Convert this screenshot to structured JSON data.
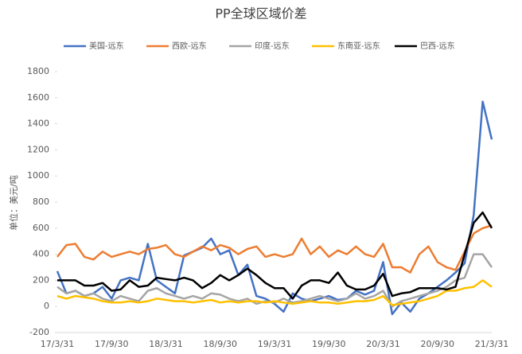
{
  "chart_data": {
    "type": "line",
    "title": "PP全球区域价差",
    "y_label": "单位：美元/吨",
    "x": [
      "17/3/31",
      null,
      null,
      null,
      null,
      null,
      "17/9/30",
      null,
      null,
      null,
      null,
      null,
      "18/3/31",
      null,
      null,
      null,
      null,
      null,
      "18/9/30",
      null,
      null,
      null,
      null,
      null,
      "19/3/31",
      null,
      null,
      null,
      null,
      null,
      "19/9/30",
      null,
      null,
      null,
      null,
      null,
      "20/3/31",
      null,
      null,
      null,
      null,
      null,
      "20/9/30",
      null,
      null,
      null,
      null,
      null,
      "21/3/31"
    ],
    "ylim": [
      -200,
      1800
    ],
    "yticks": [
      -200,
      0,
      200,
      400,
      600,
      800,
      1000,
      1200,
      1400,
      1600,
      1800
    ],
    "grid": false,
    "legend": "top",
    "series": [
      {
        "name": "美国-远东",
        "color": "#4472c4",
        "values": [
          270,
          100,
          120,
          80,
          100,
          150,
          60,
          200,
          220,
          200,
          480,
          200,
          150,
          100,
          390,
          420,
          450,
          520,
          400,
          430,
          240,
          320,
          80,
          60,
          20,
          -40,
          100,
          60,
          40,
          60,
          80,
          50,
          60,
          120,
          90,
          120,
          340,
          -60,
          30,
          -40,
          60,
          100,
          150,
          200,
          260,
          330,
          700,
          1570,
          1280
        ]
      },
      {
        "name": "西欧-远东",
        "color": "#ed7d31",
        "values": [
          380,
          470,
          480,
          380,
          360,
          420,
          380,
          400,
          420,
          400,
          440,
          450,
          470,
          400,
          380,
          420,
          460,
          430,
          470,
          450,
          400,
          440,
          460,
          380,
          400,
          380,
          400,
          520,
          400,
          460,
          380,
          430,
          400,
          460,
          400,
          380,
          480,
          300,
          300,
          260,
          400,
          460,
          340,
          300,
          280,
          420,
          560,
          600,
          620
        ]
      },
      {
        "name": "印度-远东",
        "color": "#a5a5a5",
        "values": [
          150,
          100,
          120,
          80,
          100,
          60,
          40,
          80,
          60,
          40,
          120,
          140,
          100,
          80,
          60,
          80,
          60,
          100,
          90,
          60,
          40,
          60,
          20,
          40,
          30,
          60,
          30,
          40,
          60,
          80,
          60,
          40,
          60,
          100,
          60,
          80,
          120,
          0,
          40,
          60,
          80,
          100,
          120,
          150,
          200,
          220,
          400,
          400,
          300
        ]
      },
      {
        "name": "东南亚-远东",
        "color": "#ffc000",
        "values": [
          80,
          60,
          80,
          70,
          60,
          40,
          30,
          30,
          40,
          30,
          40,
          60,
          50,
          40,
          40,
          30,
          40,
          50,
          30,
          40,
          30,
          40,
          40,
          30,
          40,
          30,
          20,
          30,
          40,
          30,
          30,
          20,
          30,
          40,
          40,
          50,
          80,
          10,
          20,
          30,
          40,
          60,
          80,
          120,
          120,
          140,
          150,
          200,
          150
        ]
      },
      {
        "name": "巴西-远东",
        "color": "#000000",
        "values": [
          200,
          200,
          200,
          160,
          160,
          180,
          120,
          130,
          200,
          150,
          160,
          220,
          210,
          200,
          220,
          200,
          140,
          180,
          240,
          200,
          240,
          290,
          240,
          180,
          140,
          140,
          60,
          160,
          200,
          200,
          180,
          260,
          160,
          130,
          130,
          160,
          250,
          80,
          100,
          110,
          140,
          140,
          140,
          130,
          150,
          400,
          640,
          720,
          600
        ]
      }
    ]
  }
}
